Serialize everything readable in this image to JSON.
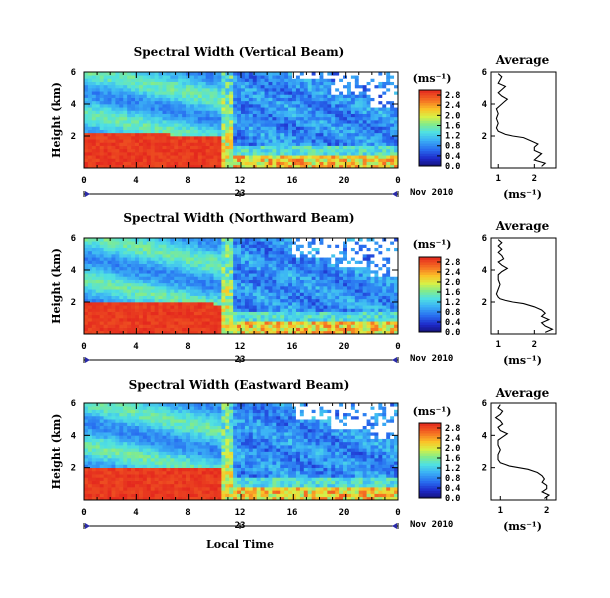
{
  "figure": {
    "date_label": "Nov 2010",
    "day_label": "23",
    "xlabel": "Local Time",
    "ylabel": "Height (km)",
    "unit_label": "(ms⁻¹)",
    "average_title": "Average",
    "average_xlabel": "(ms⁻¹)"
  },
  "chart_data": [
    {
      "type": "heatmap",
      "title": "Spectral Width (Vertical Beam)",
      "xlabel": "",
      "ylabel": "Height (km)",
      "x_ticks": [
        "0",
        "4",
        "8",
        "12",
        "16",
        "20",
        "0"
      ],
      "xlim": [
        0,
        24
      ],
      "ylim": [
        0,
        6
      ],
      "y_ticks": [
        "2",
        "4",
        "6"
      ],
      "colorbar": {
        "ticks": [
          "0.0",
          "0.4",
          "0.8",
          "1.2",
          "1.6",
          "2.0",
          "2.4",
          "2.8"
        ],
        "max": 3.0
      },
      "bl_top_km": [
        2.2,
        2.05,
        1.85,
        1.6
      ],
      "edge_km": [
        5.5,
        4.5,
        3.8
      ],
      "avg_profile": {
        "title": "Average",
        "x_ticks": [
          "1",
          "2"
        ],
        "xlim": [
          0.8,
          2.6
        ],
        "height": [
          0.1,
          0.3,
          0.5,
          0.7,
          0.9,
          1.1,
          1.3,
          1.5,
          1.7,
          1.9,
          2.0,
          2.1,
          2.2,
          2.3,
          2.5,
          2.8,
          3.1,
          3.4,
          3.7,
          3.9,
          4.1,
          4.3,
          4.5,
          4.7,
          4.9,
          5.1,
          5.3,
          5.5,
          5.7,
          5.9
        ],
        "value": [
          2.2,
          2.3,
          2.0,
          2.1,
          2.2,
          2.0,
          2.0,
          2.1,
          1.9,
          1.7,
          1.4,
          1.2,
          1.1,
          1.0,
          0.95,
          1.0,
          0.95,
          1.0,
          0.95,
          1.05,
          1.15,
          1.25,
          1.1,
          1.0,
          1.1,
          1.2,
          1.0,
          1.05,
          1.1,
          1.0
        ]
      }
    },
    {
      "type": "heatmap",
      "title": "Spectral Width (Northward Beam)",
      "xlabel": "",
      "ylabel": "Height (km)",
      "x_ticks": [
        "0",
        "4",
        "8",
        "12",
        "16",
        "20",
        "0"
      ],
      "xlim": [
        0,
        24
      ],
      "ylim": [
        0,
        6
      ],
      "y_ticks": [
        "2",
        "4",
        "6"
      ],
      "colorbar": {
        "ticks": [
          "0.0",
          "0.4",
          "0.8",
          "1.2",
          "1.6",
          "2.0",
          "2.4",
          "2.8"
        ],
        "max": 3.0
      },
      "bl_top_km": [
        2.0,
        1.9,
        1.7,
        1.5
      ],
      "edge_km": [
        4.8,
        4.2,
        3.6
      ],
      "avg_profile": {
        "title": "Average",
        "x_ticks": [
          "1",
          "2"
        ],
        "xlim": [
          0.8,
          2.6
        ],
        "height": [
          0.1,
          0.3,
          0.5,
          0.7,
          0.9,
          1.1,
          1.3,
          1.5,
          1.7,
          1.9,
          2.0,
          2.1,
          2.2,
          2.3,
          2.5,
          2.8,
          3.1,
          3.4,
          3.7,
          3.9,
          4.1,
          4.3,
          4.5,
          4.7,
          4.9,
          5.1,
          5.3,
          5.5,
          5.7,
          5.9
        ],
        "value": [
          2.3,
          2.5,
          2.3,
          2.2,
          2.4,
          2.2,
          2.3,
          2.2,
          2.0,
          1.7,
          1.4,
          1.2,
          1.05,
          1.0,
          0.95,
          1.0,
          1.05,
          1.0,
          1.0,
          1.1,
          1.25,
          1.1,
          1.0,
          1.15,
          1.1,
          1.0,
          1.1,
          1.0,
          1.1,
          1.0
        ]
      }
    },
    {
      "type": "heatmap",
      "title": "Spectral Width (Eastward Beam)",
      "xlabel": "Local Time",
      "ylabel": "Height (km)",
      "x_ticks": [
        "0",
        "4",
        "8",
        "12",
        "16",
        "20",
        "0"
      ],
      "xlim": [
        0,
        24
      ],
      "ylim": [
        0,
        6
      ],
      "y_ticks": [
        "2",
        "4",
        "6"
      ],
      "colorbar": {
        "ticks": [
          "0.0",
          "0.4",
          "0.8",
          "1.2",
          "1.6",
          "2.0",
          "2.4",
          "2.8"
        ],
        "max": 3.0
      },
      "bl_top_km": [
        2.1,
        1.95,
        1.75,
        1.55
      ],
      "edge_km": [
        5.0,
        4.4,
        3.7
      ],
      "avg_profile": {
        "title": "Average",
        "x_ticks": [
          "1",
          "2"
        ],
        "xlim": [
          0.8,
          2.2
        ],
        "height": [
          0.1,
          0.3,
          0.5,
          0.7,
          0.9,
          1.1,
          1.3,
          1.5,
          1.7,
          1.9,
          2.0,
          2.1,
          2.2,
          2.3,
          2.5,
          2.8,
          3.1,
          3.4,
          3.7,
          3.9,
          4.1,
          4.3,
          4.5,
          4.7,
          4.9,
          5.1,
          5.3,
          5.5,
          5.7,
          5.9
        ],
        "value": [
          1.95,
          2.05,
          1.9,
          2.0,
          2.0,
          1.9,
          1.95,
          1.9,
          1.8,
          1.6,
          1.4,
          1.2,
          1.1,
          1.0,
          0.95,
          0.95,
          1.0,
          0.95,
          0.95,
          1.05,
          1.15,
          1.0,
          0.95,
          1.05,
          1.0,
          0.9,
          1.0,
          1.05,
          0.95,
          1.0
        ]
      }
    }
  ]
}
